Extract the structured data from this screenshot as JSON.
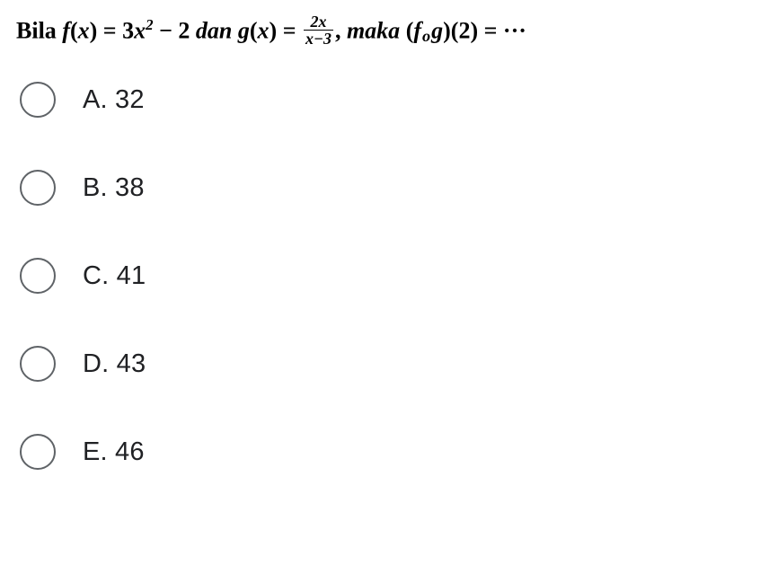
{
  "question": {
    "lead": "Bila ",
    "fx_lhs": "f",
    "fx_paren_open": "(",
    "fx_var": "x",
    "fx_paren_close": ") = 3",
    "fx_x2_base": "x",
    "fx_x2_exp": "2",
    "fx_tail": " − 2 ",
    "dan": "dan ",
    "gx": "g",
    "gx_paren_open": "(",
    "gx_var": "x",
    "gx_paren_close": ") = ",
    "frac_num": "2x",
    "frac_den": "x−3",
    "comma": ", ",
    "maka": "maka ",
    "comp_open": "(",
    "comp_f": "f",
    "comp_o": "o",
    "comp_g": "g",
    "comp_close": ")(2) = ",
    "ellipsis": "···"
  },
  "options": [
    {
      "label": "A. 32"
    },
    {
      "label": "B. 38"
    },
    {
      "label": "C. 41"
    },
    {
      "label": "D. 43"
    },
    {
      "label": "E. 46"
    }
  ],
  "colors": {
    "radio_border": "#5f6367",
    "text": "#202124",
    "background": "#ffffff"
  }
}
